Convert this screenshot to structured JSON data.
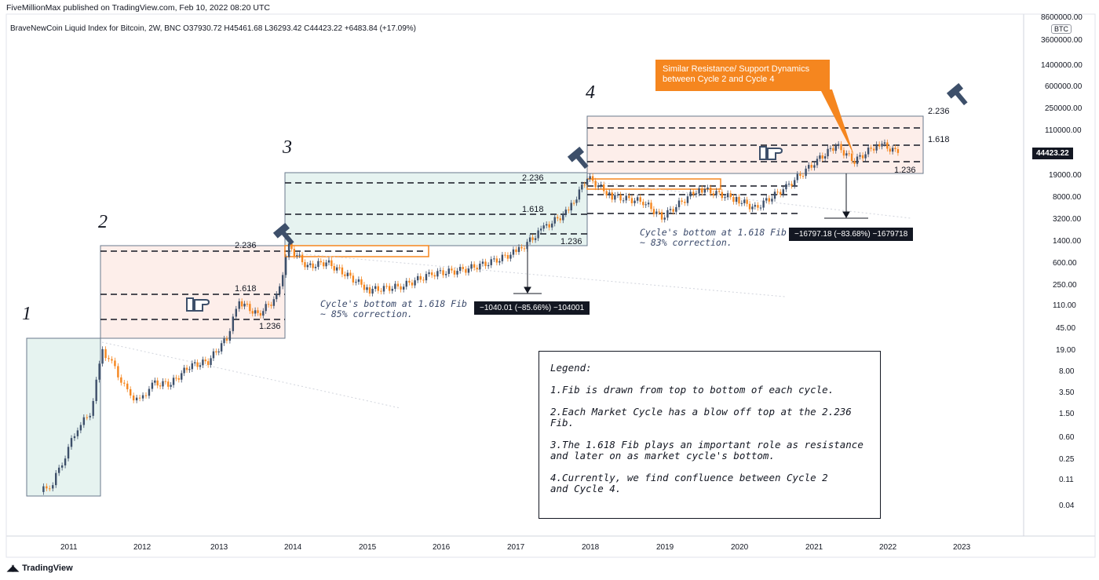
{
  "header": {
    "published": "FiveMillionMax published on TradingView.com, Feb 10, 2022 08:20 UTC",
    "symbol_line": "BraveNewCoin Liquid Index for Bitcoin, 2W, BNC  O37930.72  H45461.68  L36293.42  C44423.22  +6483.84 (+17.09%)"
  },
  "price_axis": {
    "currency_tag": "BTC",
    "last_price": "44423.22",
    "ticks": [
      "8600000.00",
      "3600000.00",
      "1400000.00",
      "600000.00",
      "250000.00",
      "110000.00",
      "19000.00",
      "8000.00",
      "3200.00",
      "1400.00",
      "600.00",
      "250.00",
      "110.00",
      "45.00",
      "19.00",
      "8.00",
      "3.50",
      "1.50",
      "0.60",
      "0.25",
      "0.11",
      "0.04"
    ]
  },
  "time_axis": {
    "ticks": [
      "2011",
      "2012",
      "2013",
      "2014",
      "2015",
      "2016",
      "2017",
      "2018",
      "2019",
      "2020",
      "2021",
      "2022",
      "2023"
    ]
  },
  "cycle_labels": [
    "1",
    "2",
    "3",
    "4"
  ],
  "fib_labels": {
    "c2": [
      "2.236",
      "1.618",
      "1.236"
    ],
    "c3": [
      "2.236",
      "1.618",
      "1.236"
    ],
    "c4": [
      "2.236",
      "1.618",
      "1.236"
    ]
  },
  "notes": {
    "c3_bottom": "Cycle's bottom at 1.618 Fib\n~ 85% correction.",
    "c4_bottom": "Cycle's bottom at 1.618 Fib\n~ 83% correction."
  },
  "measurements": {
    "c3": "−1040.01 (−85.66%) −104001",
    "c4": "−16797.18 (−83.68%) −1679718"
  },
  "callout": "Similar Resistance/ Support Dynamics\nbetween Cycle 2 and Cycle 4",
  "legend": {
    "title": "Legend:",
    "items": [
      "1.Fib is drawn from top to bottom of each cycle.",
      "2.Each Market Cycle has a blow off top at the 2.236 Fib.",
      "3.The 1.618 Fib plays an important role as resistance\nand later on as  market cycle's bottom.",
      "4.Currently, we find confluence between Cycle 2\nand Cycle 4."
    ]
  },
  "footer": {
    "brand": "TradingView"
  },
  "colors": {
    "up": "#3d4f6a",
    "down": "#f5861f",
    "zone_green": "#e6f3f0",
    "zone_red": "#fdeeea",
    "callout": "#f5861f",
    "text": "#131722"
  },
  "chart_data": {
    "type": "candlestick",
    "title": "BraveNewCoin Liquid Index for Bitcoin, 2W, BNC",
    "scale": "log",
    "x_range": [
      "2010-07",
      "2023-06"
    ],
    "ylim": [
      0.02,
      8600000
    ],
    "series": [
      {
        "date": "2010-08",
        "close": 0.07
      },
      {
        "date": "2010-10",
        "close": 0.1
      },
      {
        "date": "2010-12",
        "close": 0.3
      },
      {
        "date": "2011-02",
        "close": 0.9
      },
      {
        "date": "2011-04",
        "close": 1.5
      },
      {
        "date": "2011-06",
        "close": 19
      },
      {
        "date": "2011-08",
        "close": 9
      },
      {
        "date": "2011-10",
        "close": 3.5
      },
      {
        "date": "2011-12",
        "close": 2.5
      },
      {
        "date": "2012-02",
        "close": 5
      },
      {
        "date": "2012-05",
        "close": 5
      },
      {
        "date": "2012-08",
        "close": 10
      },
      {
        "date": "2012-11",
        "close": 12
      },
      {
        "date": "2013-02",
        "close": 30
      },
      {
        "date": "2013-04",
        "close": 130
      },
      {
        "date": "2013-07",
        "close": 75
      },
      {
        "date": "2013-10",
        "close": 150
      },
      {
        "date": "2013-12",
        "close": 1100
      },
      {
        "date": "2014-03",
        "close": 500
      },
      {
        "date": "2014-06",
        "close": 600
      },
      {
        "date": "2014-09",
        "close": 380
      },
      {
        "date": "2015-01",
        "close": 200
      },
      {
        "date": "2015-06",
        "close": 230
      },
      {
        "date": "2015-11",
        "close": 380
      },
      {
        "date": "2016-04",
        "close": 440
      },
      {
        "date": "2016-09",
        "close": 620
      },
      {
        "date": "2017-01",
        "close": 950
      },
      {
        "date": "2017-05",
        "close": 2300
      },
      {
        "date": "2017-09",
        "close": 4500
      },
      {
        "date": "2017-12",
        "close": 17000
      },
      {
        "date": "2018-04",
        "close": 8000
      },
      {
        "date": "2018-09",
        "close": 6500
      },
      {
        "date": "2018-12",
        "close": 3500
      },
      {
        "date": "2019-06",
        "close": 11000
      },
      {
        "date": "2019-12",
        "close": 7200
      },
      {
        "date": "2020-03",
        "close": 5000
      },
      {
        "date": "2020-08",
        "close": 11500
      },
      {
        "date": "2021-01",
        "close": 33000
      },
      {
        "date": "2021-04",
        "close": 60000
      },
      {
        "date": "2021-07",
        "close": 32000
      },
      {
        "date": "2021-11",
        "close": 66000
      },
      {
        "date": "2022-02",
        "close": 44423.22
      }
    ],
    "fib_zones": [
      {
        "cycle": 2,
        "levels": {
          "2.236": 1000,
          "1.618": 160,
          "1.236": 60
        }
      },
      {
        "cycle": 3,
        "levels": {
          "2.236": 22000,
          "1.618": 4800,
          "1.236": 1700
        }
      },
      {
        "cycle": 4,
        "levels": {
          "2.236": 185000,
          "1.618": 69000,
          "1.236": 32000
        }
      }
    ]
  }
}
